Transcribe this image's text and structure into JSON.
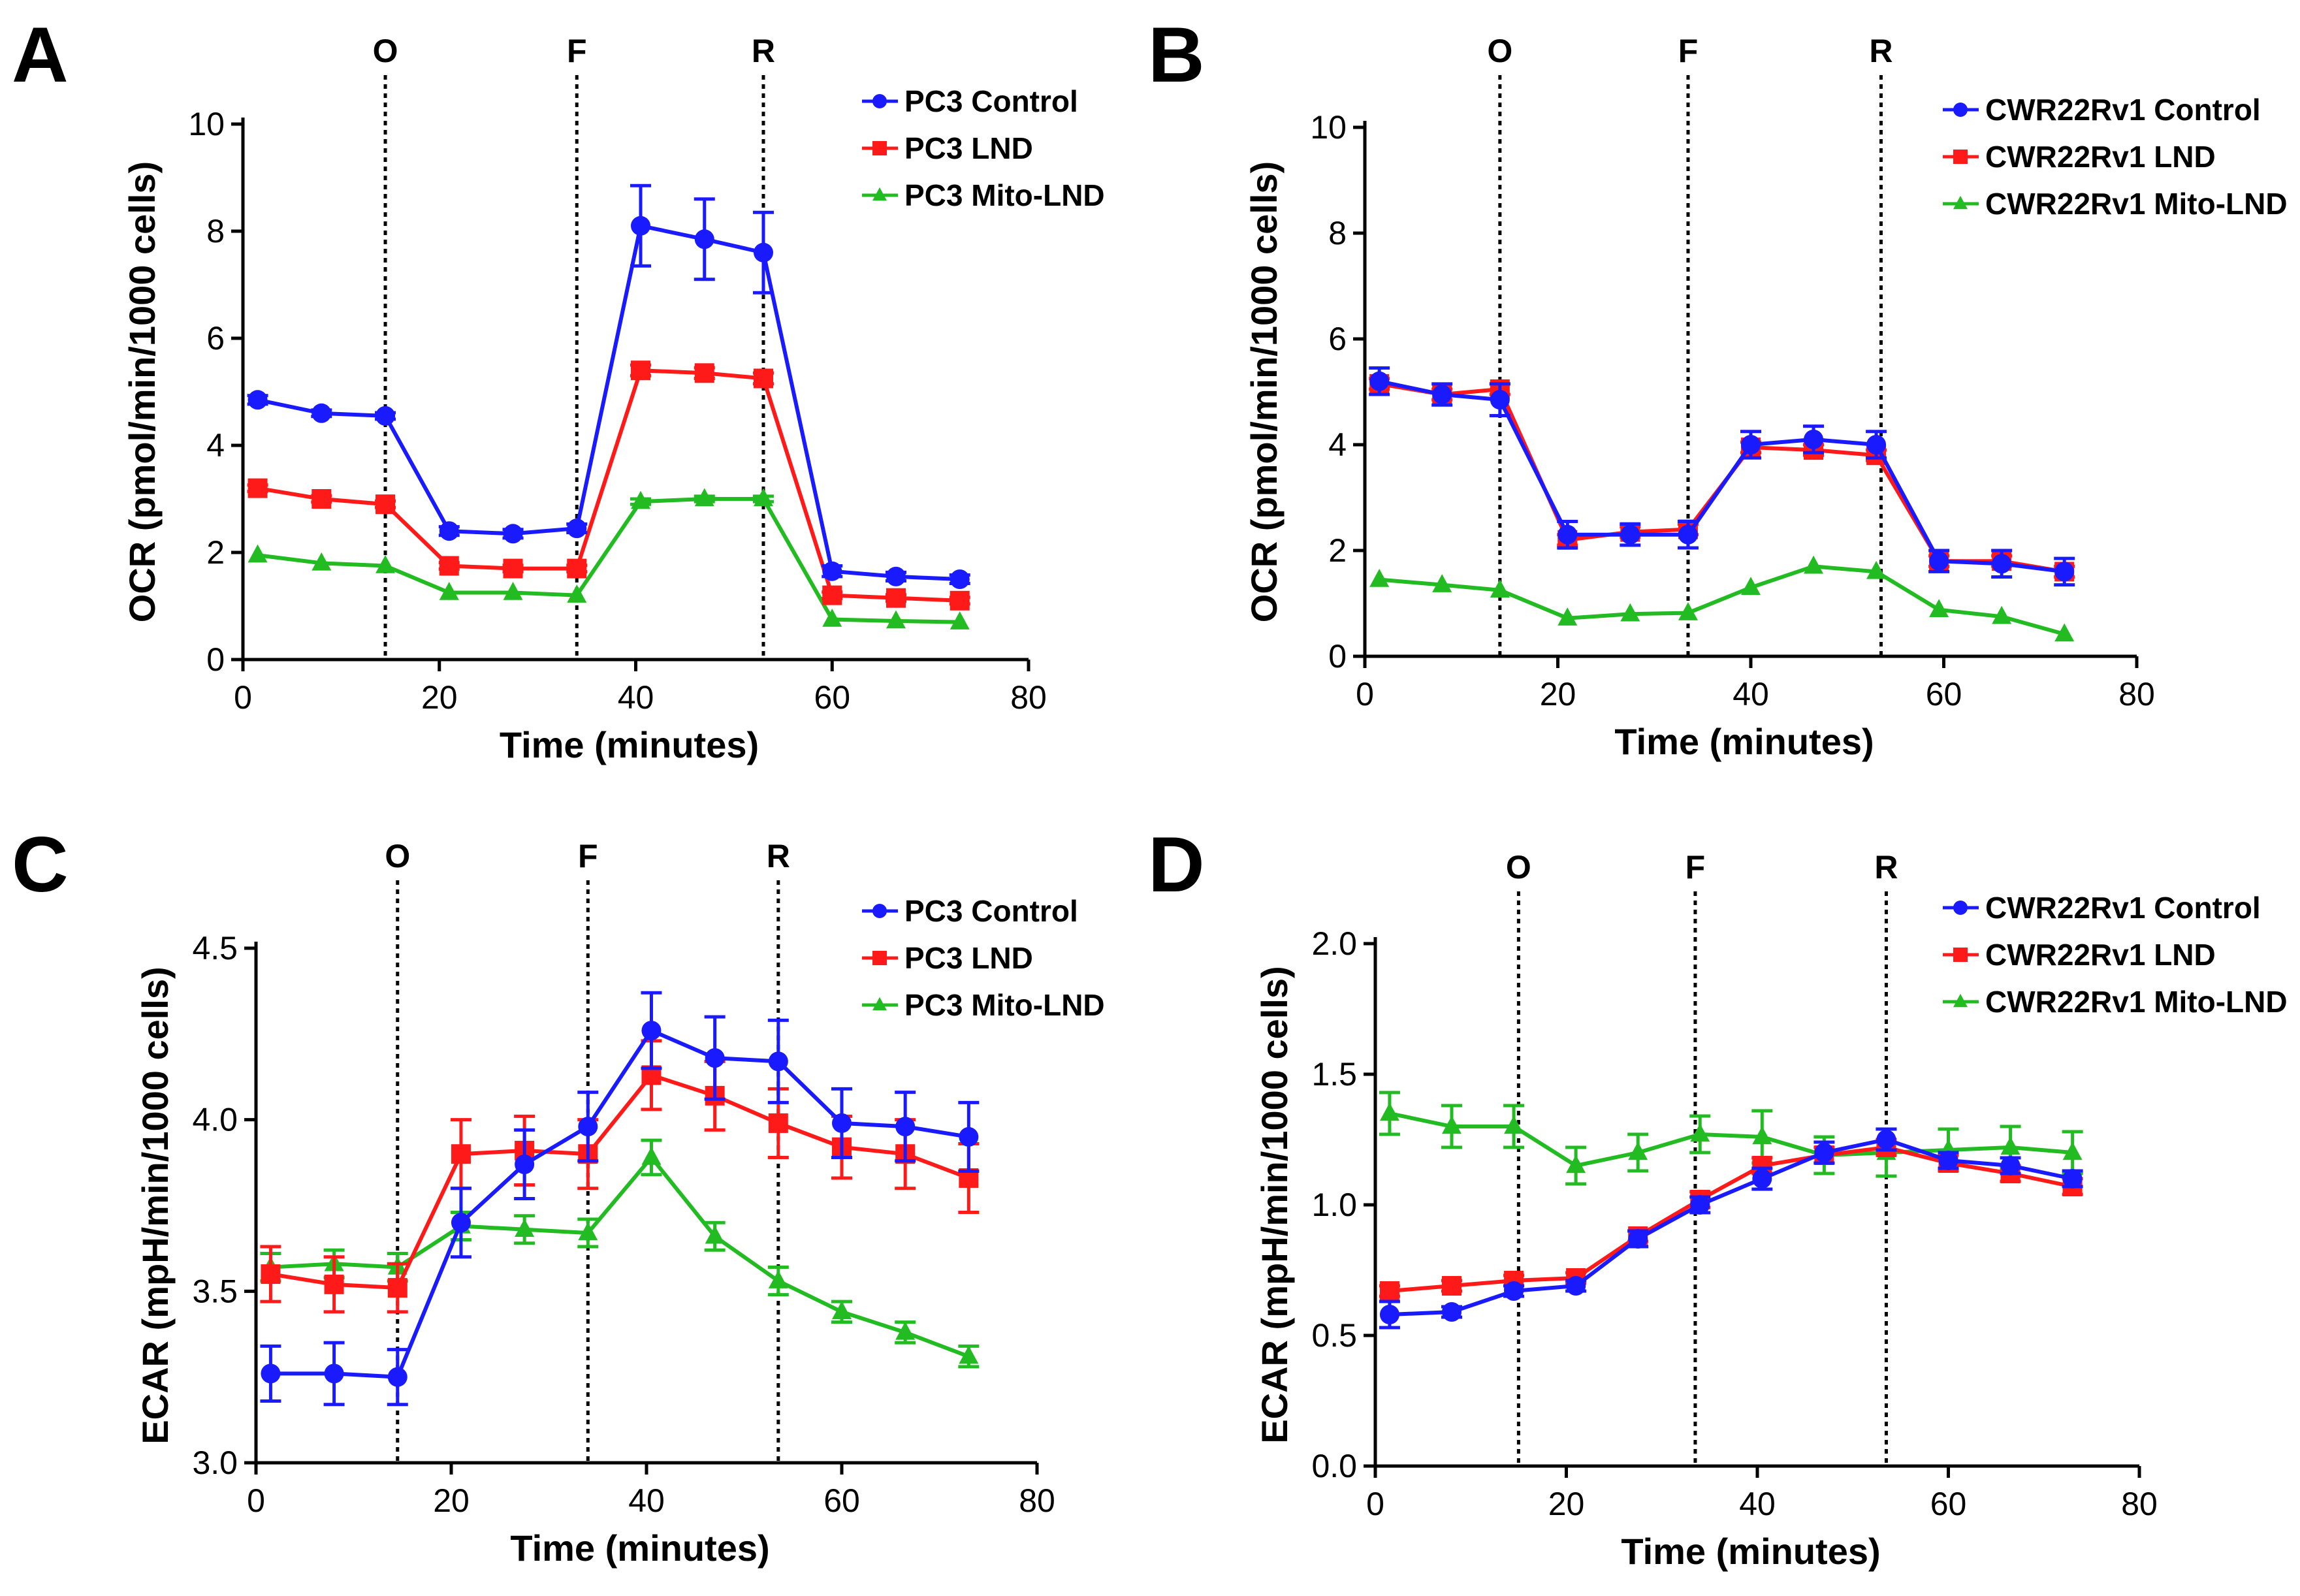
{
  "colors": {
    "control": "#1a1aff",
    "lnd": "#ff1a1a",
    "mito": "#22bb22"
  },
  "markers": [
    "O",
    "F",
    "R"
  ],
  "chart_data": [
    {
      "panel": "A",
      "type": "line",
      "xlabel": "Time (minutes)",
      "ylabel": "OCR (pmol/min/1000 cells)",
      "xlim": [
        0,
        80
      ],
      "ylim": [
        0,
        10
      ],
      "xticks": [
        "0",
        "20",
        "40",
        "60",
        "80"
      ],
      "yticks": [
        "0",
        "2",
        "4",
        "6",
        "8",
        "10"
      ],
      "ytick_values": [
        0,
        2,
        4,
        6,
        8,
        10
      ],
      "event_lines": [
        14.5,
        34,
        53
      ],
      "x": [
        1.5,
        8,
        14.5,
        21,
        27.5,
        34,
        40.5,
        47,
        53,
        60,
        66.5,
        73
      ],
      "series": [
        {
          "name": "PC3 Control",
          "color_key": "control",
          "marker": "circle",
          "values": [
            4.85,
            4.6,
            4.55,
            2.4,
            2.35,
            2.45,
            8.1,
            7.85,
            7.6,
            1.65,
            1.55,
            1.5
          ],
          "errors": [
            0.08,
            0.06,
            0.06,
            0.08,
            0.08,
            0.08,
            0.75,
            0.75,
            0.75,
            0.1,
            0.08,
            0.08
          ]
        },
        {
          "name": "PC3 LND",
          "color_key": "lnd",
          "marker": "square",
          "values": [
            3.2,
            3.0,
            2.9,
            1.75,
            1.7,
            1.7,
            5.4,
            5.35,
            5.25,
            1.2,
            1.15,
            1.1
          ],
          "errors": [
            0.06,
            0.06,
            0.06,
            0.06,
            0.06,
            0.06,
            0.1,
            0.1,
            0.1,
            0.06,
            0.06,
            0.06
          ]
        },
        {
          "name": "PC3 Mito-LND",
          "color_key": "mito",
          "marker": "triangle",
          "values": [
            1.95,
            1.8,
            1.75,
            1.25,
            1.25,
            1.2,
            2.95,
            3.0,
            3.0,
            0.75,
            0.72,
            0.7
          ],
          "errors": [
            0.04,
            0.04,
            0.04,
            0.04,
            0.04,
            0.04,
            0.05,
            0.05,
            0.05,
            0.04,
            0.04,
            0.04
          ]
        }
      ]
    },
    {
      "panel": "B",
      "type": "line",
      "xlabel": "Time (minutes)",
      "ylabel": "OCR (pmol/min/1000 cells)",
      "xlim": [
        0,
        80
      ],
      "ylim": [
        0,
        10
      ],
      "xticks": [
        "0",
        "20",
        "40",
        "60",
        "80"
      ],
      "yticks": [
        "0",
        "2",
        "4",
        "6",
        "8",
        "10"
      ],
      "ytick_values": [
        0,
        2,
        4,
        6,
        8,
        10
      ],
      "event_lines": [
        14,
        33.5,
        53.5
      ],
      "x": [
        1.5,
        8,
        14,
        21,
        27.5,
        33.5,
        40,
        46.5,
        53,
        59.5,
        66,
        72.5
      ],
      "series": [
        {
          "name": "CWR22Rv1 Control",
          "color_key": "control",
          "marker": "circle",
          "values": [
            5.2,
            4.95,
            4.85,
            2.3,
            2.3,
            2.3,
            4.0,
            4.1,
            4.0,
            1.8,
            1.75,
            1.6
          ],
          "errors": [
            0.25,
            0.2,
            0.3,
            0.25,
            0.2,
            0.25,
            0.25,
            0.25,
            0.25,
            0.2,
            0.25,
            0.25
          ]
        },
        {
          "name": "CWR22Rv1 LND",
          "color_key": "lnd",
          "marker": "square",
          "values": [
            5.15,
            4.95,
            5.05,
            2.2,
            2.35,
            2.4,
            3.95,
            3.9,
            3.8,
            1.8,
            1.8,
            1.6
          ],
          "errors": [
            0.1,
            0.1,
            0.1,
            0.1,
            0.1,
            0.1,
            0.1,
            0.1,
            0.1,
            0.1,
            0.1,
            0.1
          ]
        },
        {
          "name": "CWR22Rv1 Mito-LND",
          "color_key": "mito",
          "marker": "triangle",
          "values": [
            1.45,
            1.35,
            1.25,
            0.72,
            0.8,
            0.82,
            1.3,
            1.7,
            1.6,
            0.88,
            0.75,
            0.42
          ],
          "errors": [
            0.04,
            0.04,
            0.04,
            0.04,
            0.04,
            0.04,
            0.04,
            0.04,
            0.04,
            0.04,
            0.04,
            0.04
          ]
        }
      ]
    },
    {
      "panel": "C",
      "type": "line",
      "xlabel": "Time (minutes)",
      "ylabel": "ECAR (mpH/min/1000 cells)",
      "xlim": [
        0,
        80
      ],
      "ylim": [
        3.0,
        4.5
      ],
      "xticks": [
        "0",
        "20",
        "40",
        "60",
        "80"
      ],
      "yticks": [
        "3.0",
        "3.5",
        "4.0",
        "4.5"
      ],
      "ytick_values": [
        3.0,
        3.5,
        4.0,
        4.5
      ],
      "event_lines": [
        14.5,
        34,
        53.5
      ],
      "x": [
        1.5,
        8,
        14.5,
        21,
        27.5,
        34,
        40.5,
        47,
        53.5,
        60,
        66.5,
        73
      ],
      "series": [
        {
          "name": "PC3 Control",
          "color_key": "control",
          "marker": "circle",
          "values": [
            3.26,
            3.26,
            3.25,
            3.7,
            3.87,
            3.98,
            4.26,
            4.18,
            4.17,
            3.99,
            3.98,
            3.95
          ],
          "errors": [
            0.08,
            0.09,
            0.08,
            0.1,
            0.1,
            0.1,
            0.11,
            0.12,
            0.12,
            0.1,
            0.1,
            0.1
          ]
        },
        {
          "name": "PC3 LND",
          "color_key": "lnd",
          "marker": "square",
          "values": [
            3.55,
            3.52,
            3.51,
            3.9,
            3.91,
            3.9,
            4.13,
            4.07,
            3.99,
            3.92,
            3.9,
            3.83
          ],
          "errors": [
            0.08,
            0.08,
            0.07,
            0.1,
            0.1,
            0.1,
            0.1,
            0.1,
            0.1,
            0.09,
            0.1,
            0.1
          ]
        },
        {
          "name": "PC3 Mito-LND",
          "color_key": "mito",
          "marker": "triangle",
          "values": [
            3.57,
            3.58,
            3.57,
            3.69,
            3.68,
            3.67,
            3.89,
            3.66,
            3.53,
            3.44,
            3.38,
            3.31
          ],
          "errors": [
            0.04,
            0.04,
            0.04,
            0.04,
            0.04,
            0.04,
            0.05,
            0.04,
            0.04,
            0.03,
            0.03,
            0.03
          ]
        }
      ]
    },
    {
      "panel": "D",
      "type": "line",
      "xlabel": "Time (minutes)",
      "ylabel": "ECAR (mpH/min/1000 cells)",
      "xlim": [
        0,
        80
      ],
      "ylim": [
        0,
        2.0
      ],
      "xticks": [
        "0",
        "20",
        "40",
        "60",
        "80"
      ],
      "yticks": [
        "0.0",
        "0.5",
        "1.0",
        "1.5",
        "2.0"
      ],
      "ytick_values": [
        0,
        0.5,
        1.0,
        1.5,
        2.0
      ],
      "event_lines": [
        15,
        33.5,
        53.5
      ],
      "x": [
        1.5,
        8,
        14.5,
        21,
        27.5,
        34,
        40.5,
        47,
        53.5,
        60,
        66.5,
        73
      ],
      "series": [
        {
          "name": "CWR22Rv1 Control",
          "color_key": "control",
          "marker": "circle",
          "values": [
            0.58,
            0.59,
            0.67,
            0.69,
            0.87,
            1.0,
            1.1,
            1.2,
            1.25,
            1.17,
            1.15,
            1.1
          ],
          "errors": [
            0.05,
            0.02,
            0.02,
            0.02,
            0.03,
            0.03,
            0.04,
            0.04,
            0.04,
            0.03,
            0.03,
            0.03
          ]
        },
        {
          "name": "CWR22Rv1 LND",
          "color_key": "lnd",
          "marker": "square",
          "values": [
            0.67,
            0.69,
            0.71,
            0.72,
            0.88,
            1.02,
            1.15,
            1.19,
            1.22,
            1.16,
            1.12,
            1.07
          ],
          "errors": [
            0.02,
            0.02,
            0.02,
            0.02,
            0.02,
            0.03,
            0.03,
            0.03,
            0.03,
            0.03,
            0.03,
            0.03
          ]
        },
        {
          "name": "CWR22Rv1 Mito-LND",
          "color_key": "mito",
          "marker": "triangle",
          "values": [
            1.35,
            1.3,
            1.3,
            1.15,
            1.2,
            1.27,
            1.26,
            1.19,
            1.2,
            1.21,
            1.22,
            1.2
          ],
          "errors": [
            0.08,
            0.08,
            0.08,
            0.07,
            0.07,
            0.07,
            0.1,
            0.07,
            0.09,
            0.08,
            0.08,
            0.08
          ]
        }
      ]
    }
  ]
}
